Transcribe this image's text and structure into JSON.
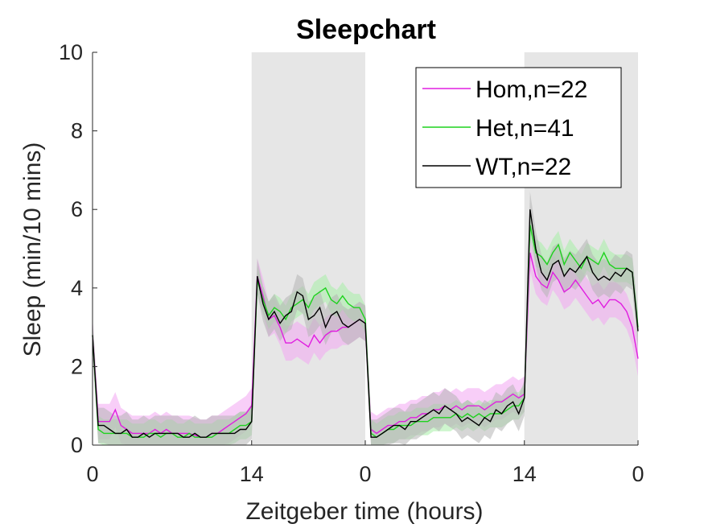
{
  "chart_data": {
    "type": "line",
    "title": "Sleepchart",
    "xlabel": "Zeitgeber time (hours)",
    "ylabel": "Sleep (min/10 mins)",
    "ylim": [
      0,
      10
    ],
    "yticks": [
      "0",
      "2",
      "4",
      "6",
      "8",
      "10"
    ],
    "xticks": [
      {
        "hour": 0,
        "label": "0"
      },
      {
        "hour": 14,
        "label": "14"
      },
      {
        "hour": 24,
        "label": "0"
      },
      {
        "hour": 38,
        "label": "14"
      },
      {
        "hour": 48,
        "label": "0"
      }
    ],
    "xlim_hours": [
      0,
      48
    ],
    "dark_periods_hours": [
      [
        14,
        24
      ],
      [
        38,
        48
      ]
    ],
    "legend_position": "top-right",
    "grid": false,
    "series": [
      {
        "name": "Hom,n=22",
        "color": "#e01ee0",
        "band_color": "#f2a6f2",
        "x": [
          0,
          0.5,
          1,
          1.5,
          2,
          2.5,
          3,
          3.5,
          4,
          4.5,
          5,
          5.5,
          6,
          6.5,
          7,
          7.5,
          8,
          8.5,
          9,
          9.5,
          10,
          10.5,
          11,
          11.5,
          12,
          12.5,
          13,
          13.5,
          14,
          14.5,
          15,
          15.5,
          16,
          16.5,
          17,
          17.5,
          18,
          18.5,
          19,
          19.5,
          20,
          20.5,
          21,
          21.5,
          22,
          22.5,
          23,
          23.5,
          24,
          24.5,
          25,
          25.5,
          26,
          26.5,
          27,
          27.5,
          28,
          28.5,
          29,
          29.5,
          30,
          30.5,
          31,
          31.5,
          32,
          32.5,
          33,
          33.5,
          34,
          34.5,
          35,
          35.5,
          36,
          36.5,
          37,
          37.5,
          38,
          38.5,
          39,
          39.5,
          40,
          40.5,
          41,
          41.5,
          42,
          42.5,
          43,
          43.5,
          44,
          44.5,
          45,
          45.5,
          46,
          46.5,
          47,
          47.5,
          48
        ],
        "values": [
          2.8,
          0.6,
          0.6,
          0.6,
          0.9,
          0.5,
          0.4,
          0.3,
          0.3,
          0.3,
          0.3,
          0.4,
          0.3,
          0.4,
          0.3,
          0.3,
          0.3,
          0.3,
          0.25,
          0.2,
          0.2,
          0.3,
          0.3,
          0.4,
          0.5,
          0.6,
          0.7,
          0.8,
          1.0,
          4.3,
          3.8,
          3.2,
          3.3,
          3.0,
          2.6,
          2.6,
          2.7,
          2.6,
          2.5,
          2.8,
          2.6,
          2.8,
          2.9,
          2.9,
          3.0,
          3.0,
          3.1,
          3.2,
          3.1,
          0.4,
          0.3,
          0.4,
          0.5,
          0.5,
          0.6,
          0.6,
          0.7,
          0.7,
          0.8,
          0.8,
          0.9,
          0.9,
          1.0,
          0.9,
          1.0,
          0.9,
          1.0,
          1.0,
          1.0,
          0.9,
          1.0,
          1.1,
          1.1,
          1.2,
          1.3,
          1.2,
          1.3,
          4.9,
          4.3,
          4.1,
          4.0,
          4.4,
          4.2,
          3.9,
          4.0,
          4.2,
          4.0,
          3.8,
          3.6,
          3.7,
          3.5,
          3.7,
          3.7,
          3.6,
          3.4,
          3.0,
          2.2
        ],
        "err": 0.45
      },
      {
        "name": "Het,n=41",
        "color": "#1ed21e",
        "band_color": "#a6eea6",
        "x": [
          0,
          0.5,
          1,
          1.5,
          2,
          2.5,
          3,
          3.5,
          4,
          4.5,
          5,
          5.5,
          6,
          6.5,
          7,
          7.5,
          8,
          8.5,
          9,
          9.5,
          10,
          10.5,
          11,
          11.5,
          12,
          12.5,
          13,
          13.5,
          14,
          14.5,
          15,
          15.5,
          16,
          16.5,
          17,
          17.5,
          18,
          18.5,
          19,
          19.5,
          20,
          20.5,
          21,
          21.5,
          22,
          22.5,
          23,
          23.5,
          24,
          24.5,
          25,
          25.5,
          26,
          26.5,
          27,
          27.5,
          28,
          28.5,
          29,
          29.5,
          30,
          30.5,
          31,
          31.5,
          32,
          32.5,
          33,
          33.5,
          34,
          34.5,
          35,
          35.5,
          36,
          36.5,
          37,
          37.5,
          38,
          38.5,
          39,
          39.5,
          40,
          40.5,
          41,
          41.5,
          42,
          42.5,
          43,
          43.5,
          44,
          44.5,
          45,
          45.5,
          46,
          46.5,
          47,
          47.5,
          48
        ],
        "values": [
          2.8,
          0.4,
          0.3,
          0.3,
          0.3,
          0.3,
          0.3,
          0.2,
          0.2,
          0.2,
          0.3,
          0.3,
          0.2,
          0.3,
          0.3,
          0.2,
          0.2,
          0.3,
          0.2,
          0.2,
          0.2,
          0.2,
          0.3,
          0.3,
          0.3,
          0.4,
          0.5,
          0.5,
          0.6,
          4.2,
          3.7,
          3.3,
          3.5,
          3.4,
          3.2,
          3.5,
          3.6,
          3.7,
          3.5,
          3.8,
          3.9,
          4.0,
          3.7,
          3.6,
          3.8,
          3.6,
          3.5,
          3.5,
          3.2,
          0.3,
          0.2,
          0.3,
          0.4,
          0.4,
          0.5,
          0.5,
          0.5,
          0.6,
          0.6,
          0.6,
          0.7,
          0.7,
          0.7,
          0.7,
          0.8,
          0.7,
          0.8,
          0.7,
          0.8,
          0.7,
          0.8,
          0.8,
          0.8,
          0.9,
          1.0,
          1.0,
          1.2,
          5.6,
          4.9,
          4.8,
          4.6,
          4.9,
          5.1,
          4.6,
          4.9,
          4.7,
          4.5,
          4.8,
          4.7,
          4.6,
          4.9,
          4.6,
          4.5,
          4.5,
          4.5,
          4.4,
          3.0
        ],
        "err": 0.35
      },
      {
        "name": "WT,n=22",
        "color": "#000000",
        "band_color": "#b4b4b4",
        "x": [
          0,
          0.5,
          1,
          1.5,
          2,
          2.5,
          3,
          3.5,
          4,
          4.5,
          5,
          5.5,
          6,
          6.5,
          7,
          7.5,
          8,
          8.5,
          9,
          9.5,
          10,
          10.5,
          11,
          11.5,
          12,
          12.5,
          13,
          13.5,
          14,
          14.5,
          15,
          15.5,
          16,
          16.5,
          17,
          17.5,
          18,
          18.5,
          19,
          19.5,
          20,
          20.5,
          21,
          21.5,
          22,
          22.5,
          23,
          23.5,
          24,
          24.5,
          25,
          25.5,
          26,
          26.5,
          27,
          27.5,
          28,
          28.5,
          29,
          29.5,
          30,
          30.5,
          31,
          31.5,
          32,
          32.5,
          33,
          33.5,
          34,
          34.5,
          35,
          35.5,
          36,
          36.5,
          37,
          37.5,
          38,
          38.5,
          39,
          39.5,
          40,
          40.5,
          41,
          41.5,
          42,
          42.5,
          43,
          43.5,
          44,
          44.5,
          45,
          45.5,
          46,
          46.5,
          47,
          47.5,
          48
        ],
        "values": [
          2.8,
          0.5,
          0.5,
          0.4,
          0.3,
          0.3,
          0.4,
          0.2,
          0.2,
          0.3,
          0.2,
          0.3,
          0.3,
          0.3,
          0.3,
          0.3,
          0.2,
          0.2,
          0.3,
          0.2,
          0.2,
          0.3,
          0.3,
          0.3,
          0.3,
          0.3,
          0.4,
          0.4,
          0.6,
          4.3,
          3.6,
          3.2,
          3.4,
          3.1,
          3.3,
          3.4,
          3.9,
          3.8,
          3.2,
          3.3,
          3.5,
          3.0,
          3.3,
          3.4,
          3.1,
          3.0,
          3.1,
          3.2,
          3.1,
          0.2,
          0.2,
          0.3,
          0.4,
          0.5,
          0.5,
          0.4,
          0.6,
          0.6,
          0.7,
          0.8,
          0.9,
          0.8,
          1.0,
          0.9,
          0.8,
          0.6,
          0.7,
          0.6,
          0.5,
          0.7,
          0.6,
          0.9,
          0.8,
          1.0,
          1.1,
          0.8,
          1.2,
          6.0,
          5.0,
          4.4,
          4.2,
          4.6,
          4.7,
          4.3,
          4.5,
          4.4,
          4.6,
          4.8,
          4.4,
          4.2,
          4.3,
          4.2,
          4.4,
          4.3,
          4.5,
          4.4,
          2.9
        ],
        "err": 0.45
      }
    ]
  }
}
